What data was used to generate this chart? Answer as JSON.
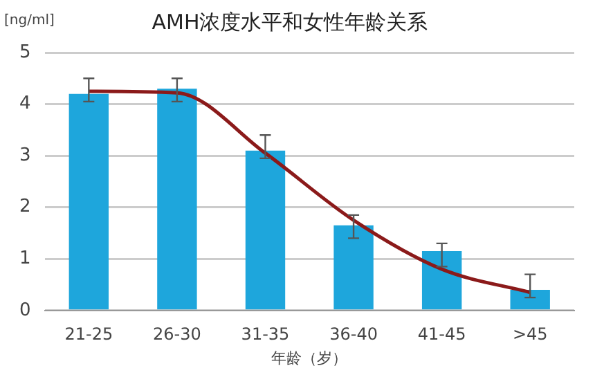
{
  "chart_data": {
    "type": "bar",
    "title": "AMH浓度水平和女性年龄关系",
    "xlabel": "年龄（岁）",
    "ylabel": "[ng/ml]",
    "categories": [
      "21-25",
      "26-30",
      "31-35",
      "36-40",
      "41-45",
      ">45"
    ],
    "series": [
      {
        "color": "#1ea6dc",
        "values": [
          4.2,
          4.3,
          3.1,
          1.65,
          1.15,
          0.4
        ],
        "errors": [
          [
            4.05,
            4.5
          ],
          [
            4.05,
            4.5
          ],
          [
            2.95,
            3.4
          ],
          [
            1.4,
            1.85
          ],
          [
            0.85,
            1.3
          ],
          [
            0.25,
            0.7
          ]
        ]
      },
      {
        "type": "line",
        "color": "#8b1a1a",
        "values": [
          4.25,
          4.22,
          3.05,
          1.75,
          0.8,
          0.35
        ]
      }
    ],
    "ylim": [
      0,
      5
    ],
    "yticks": [
      0,
      1,
      2,
      3,
      4,
      5
    ],
    "grid": "y",
    "legend": false,
    "marker": "none"
  }
}
